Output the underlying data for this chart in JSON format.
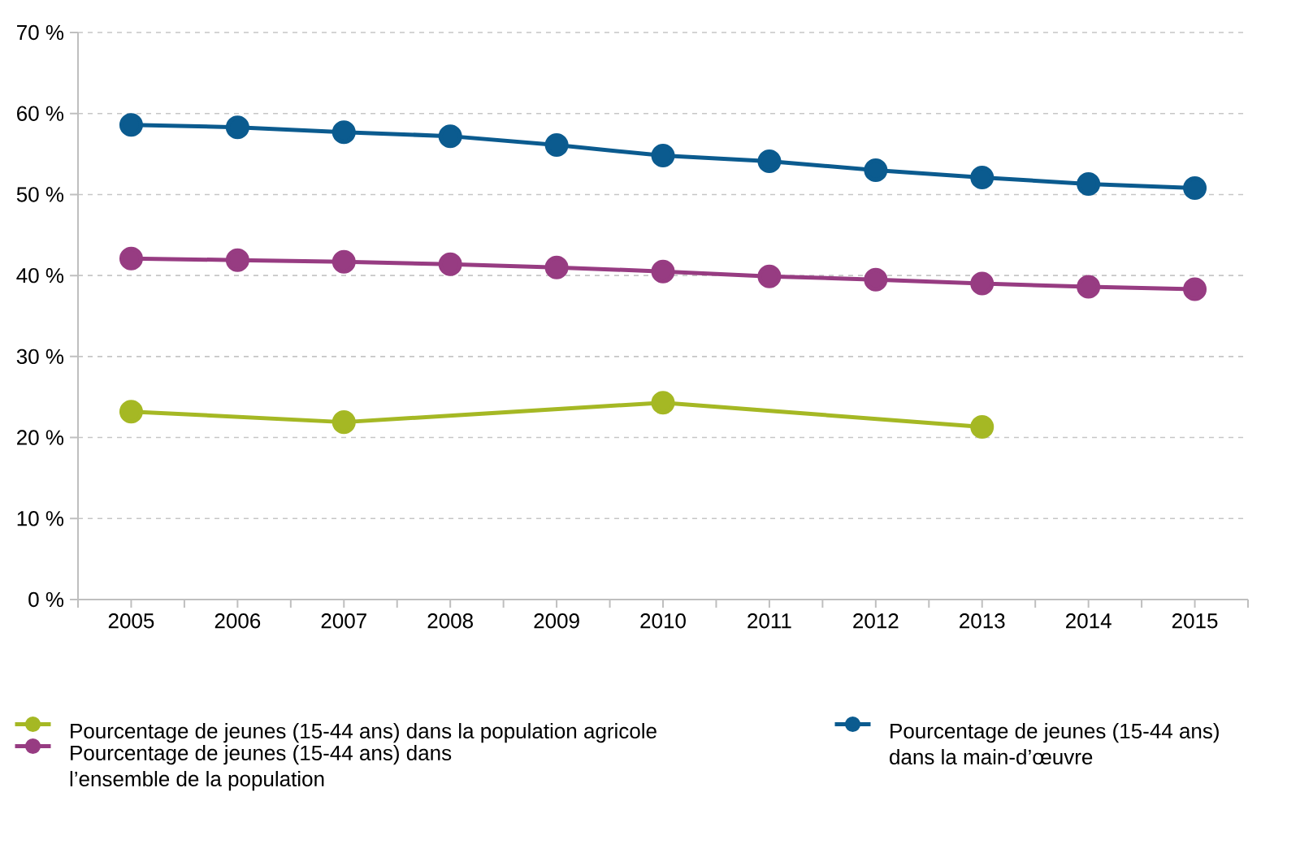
{
  "chart_data": {
    "type": "line",
    "x": [
      2005,
      2006,
      2007,
      2008,
      2009,
      2010,
      2011,
      2012,
      2013,
      2014,
      2015
    ],
    "series": [
      {
        "name": "Pourcentage de jeunes (15-44 ans) dans la population agricole",
        "color": "#a5b824",
        "x": [
          2005,
          2007,
          2010,
          2013
        ],
        "values": [
          23.2,
          21.9,
          24.3,
          21.3
        ]
      },
      {
        "name": "Pourcentage de jeunes (15-44 ans) dans la main-d’œuvre",
        "color": "#0b5b8f",
        "values": [
          58.6,
          58.3,
          57.7,
          57.2,
          56.1,
          54.8,
          54.1,
          53.0,
          52.1,
          51.3,
          50.8
        ]
      },
      {
        "name": "Pourcentage de jeunes (15-44 ans) dans l’ensemble de la population",
        "color": "#973c82",
        "values": [
          42.1,
          41.9,
          41.7,
          41.4,
          41.0,
          40.5,
          39.9,
          39.5,
          39.0,
          38.6,
          38.3
        ]
      }
    ],
    "xlim": [
      2004.5,
      2015.5
    ],
    "xticks": [
      {
        "value": 2004.5,
        "label": null
      },
      2005,
      {
        "value": 2005.5,
        "label": null
      },
      2006,
      {
        "value": 2006.5,
        "label": null
      },
      2007,
      {
        "value": 2007.5,
        "label": null
      },
      2008,
      {
        "value": 2008.5,
        "label": null
      },
      2009,
      {
        "value": 2009.5,
        "label": null
      },
      2010,
      {
        "value": 2010.5,
        "label": null
      },
      2011,
      {
        "value": 2011.5,
        "label": null
      },
      2012,
      {
        "value": 2012.5,
        "label": null
      },
      2013,
      {
        "value": 2013.5,
        "label": null
      },
      2014,
      {
        "value": 2014.5,
        "label": null
      },
      2015,
      {
        "value": 2015.5,
        "label": null
      }
    ],
    "ylim": [
      0,
      70
    ],
    "yticks": [
      {
        "value": 0,
        "label": "0 %"
      },
      {
        "value": 10,
        "label": "10 %"
      },
      {
        "value": 20,
        "label": "20 %"
      },
      {
        "value": 30,
        "label": "30 %"
      },
      {
        "value": 40,
        "label": "40 %"
      },
      {
        "value": 50,
        "label": "50 %"
      },
      {
        "value": 60,
        "label": "60 %"
      },
      {
        "value": 70,
        "label": "70 %"
      }
    ],
    "grid": "y",
    "legend": "bottom",
    "marker": "circle",
    "line_style": "solid"
  }
}
